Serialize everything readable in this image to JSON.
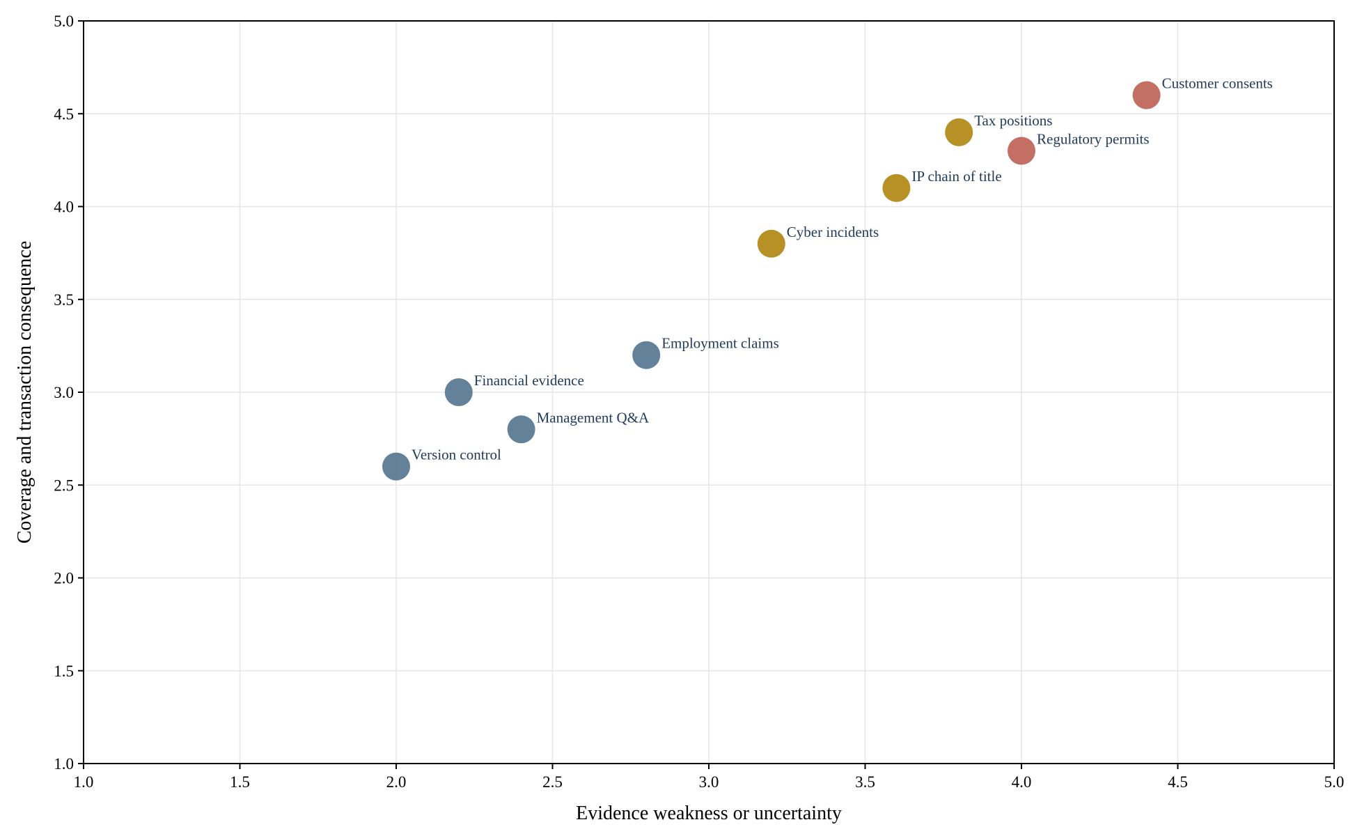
{
  "chart_data": {
    "type": "scatter",
    "title": "",
    "xlabel": "Evidence weakness or uncertainty",
    "ylabel": "Coverage and transaction consequence",
    "xlim": [
      1.0,
      5.0
    ],
    "ylim": [
      1.0,
      5.0
    ],
    "xticks": [
      "1.0",
      "1.5",
      "2.0",
      "2.5",
      "3.0",
      "3.5",
      "4.0",
      "4.5",
      "5.0"
    ],
    "yticks": [
      "1.0",
      "1.5",
      "2.0",
      "2.5",
      "3.0",
      "3.5",
      "4.0",
      "4.5",
      "5.0"
    ],
    "grid": true,
    "legend": "none",
    "colors": {
      "blue": "#5b7a94",
      "gold": "#b38a1a",
      "red": "#c0675c"
    },
    "points": [
      {
        "label": "Version control",
        "x": 2.0,
        "y": 2.6,
        "color": "blue"
      },
      {
        "label": "Financial evidence",
        "x": 2.2,
        "y": 3.0,
        "color": "blue"
      },
      {
        "label": "Management Q&A",
        "x": 2.4,
        "y": 2.8,
        "color": "blue"
      },
      {
        "label": "Employment claims",
        "x": 2.8,
        "y": 3.2,
        "color": "blue"
      },
      {
        "label": "Cyber incidents",
        "x": 3.2,
        "y": 3.8,
        "color": "gold"
      },
      {
        "label": "IP chain of title",
        "x": 3.6,
        "y": 4.1,
        "color": "gold"
      },
      {
        "label": "Tax positions",
        "x": 3.8,
        "y": 4.4,
        "color": "gold"
      },
      {
        "label": "Regulatory permits",
        "x": 4.0,
        "y": 4.3,
        "color": "red"
      },
      {
        "label": "Customer consents",
        "x": 4.4,
        "y": 4.6,
        "color": "red"
      }
    ]
  }
}
